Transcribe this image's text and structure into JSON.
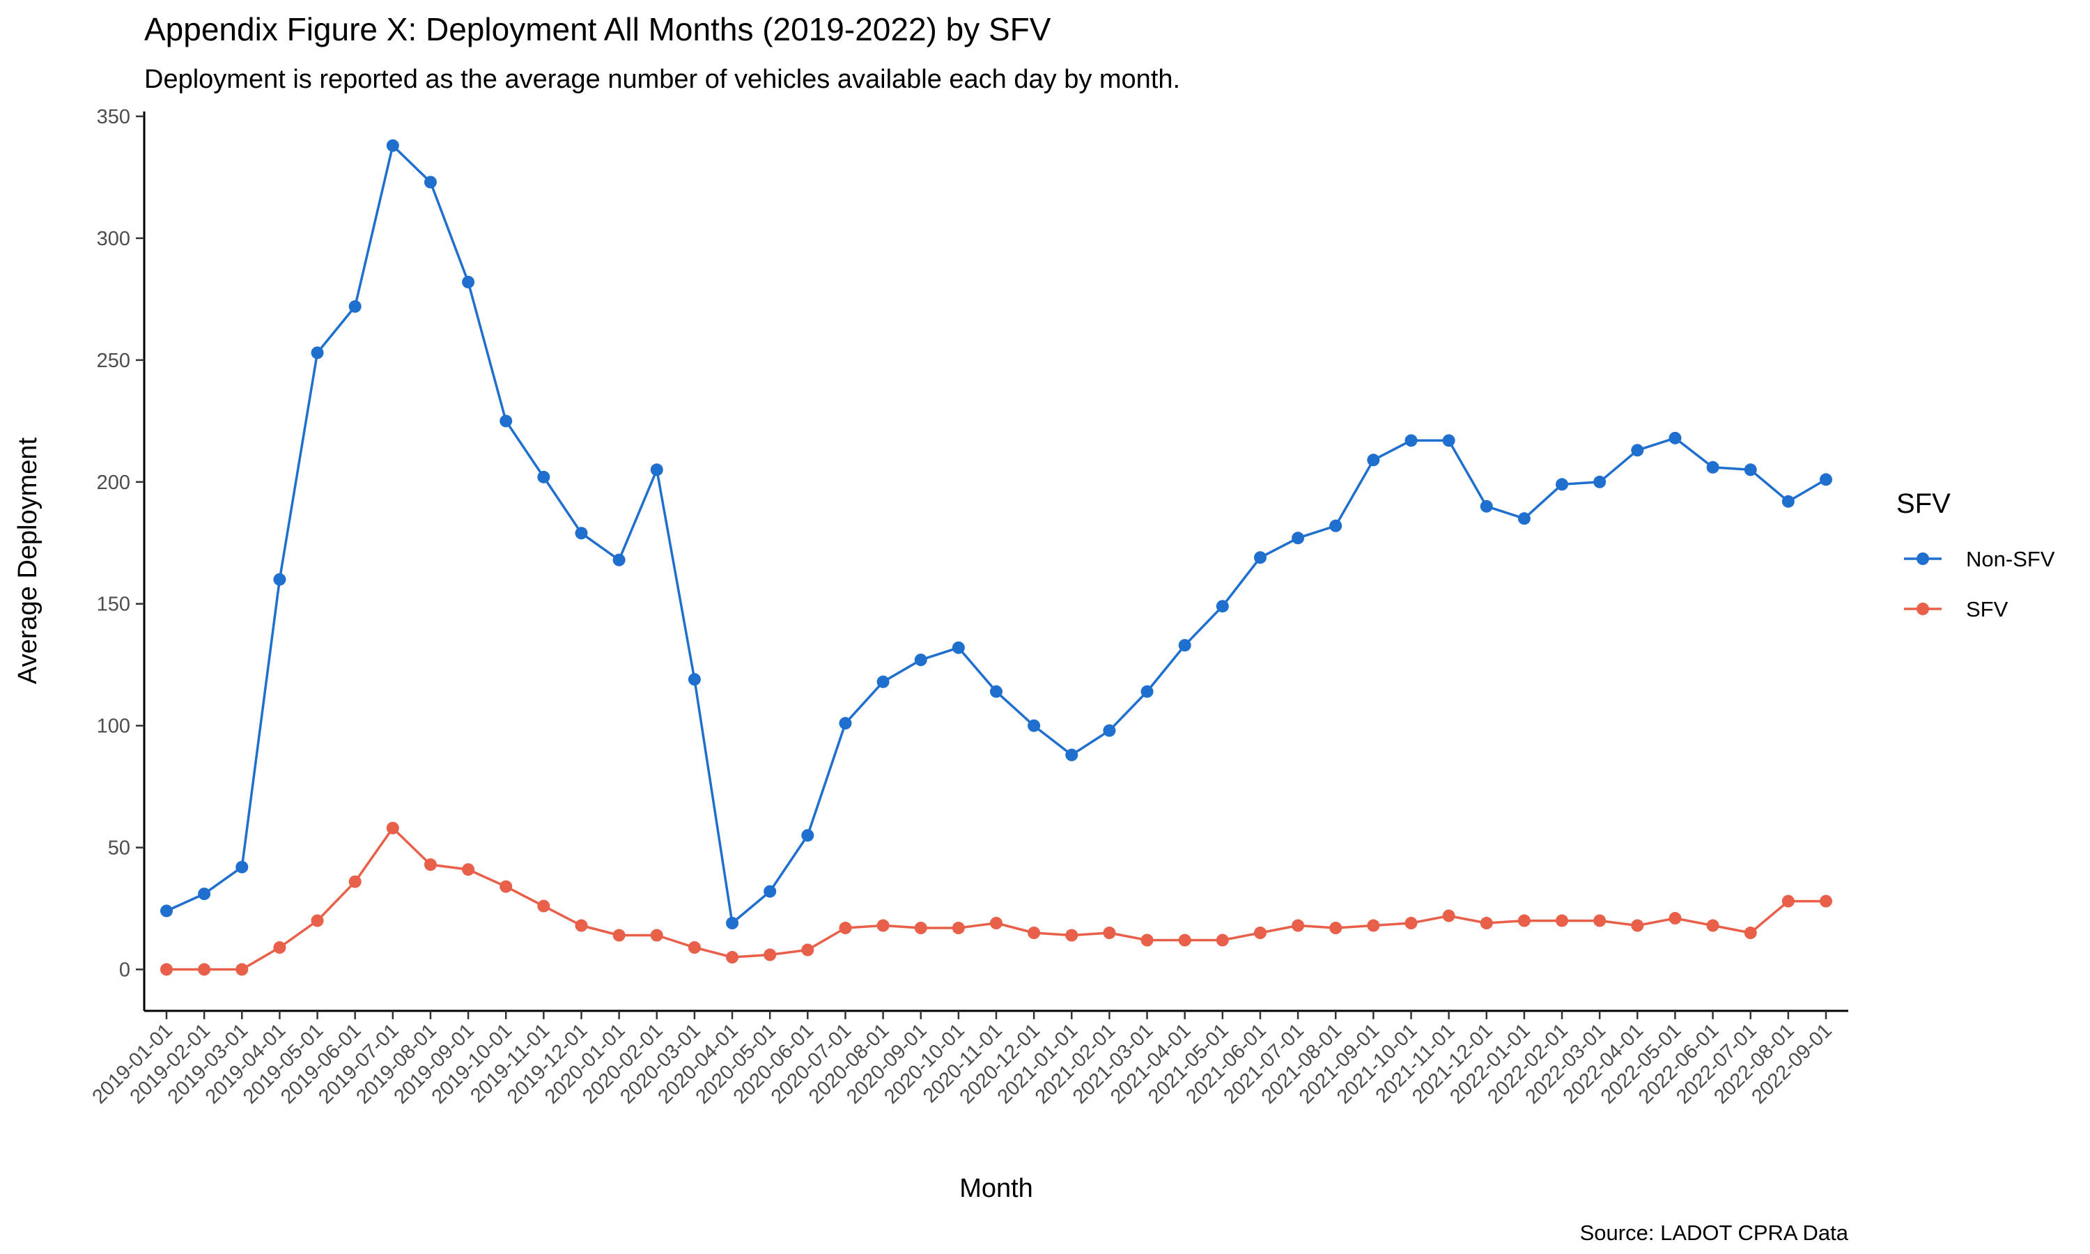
{
  "chart_data": {
    "type": "line",
    "title": "Appendix Figure X: Deployment All Months (2019-2022) by SFV",
    "subtitle": "Deployment is reported as the average number of vehicles available each day by month.",
    "xlabel": "Month",
    "ylabel": "Average Deployment",
    "caption": "Source: LADOT CPRA Data",
    "ylim": [
      -17,
      352
    ],
    "yticks": [
      0,
      50,
      100,
      150,
      200,
      250,
      300,
      350
    ],
    "grid": false,
    "legend_title": "SFV",
    "legend_position": "right",
    "x": [
      "2019-01-01",
      "2019-02-01",
      "2019-03-01",
      "2019-04-01",
      "2019-05-01",
      "2019-06-01",
      "2019-07-01",
      "2019-08-01",
      "2019-09-01",
      "2019-10-01",
      "2019-11-01",
      "2019-12-01",
      "2020-01-01",
      "2020-02-01",
      "2020-03-01",
      "2020-04-01",
      "2020-05-01",
      "2020-06-01",
      "2020-07-01",
      "2020-08-01",
      "2020-09-01",
      "2020-10-01",
      "2020-11-01",
      "2020-12-01",
      "2021-01-01",
      "2021-02-01",
      "2021-03-01",
      "2021-04-01",
      "2021-05-01",
      "2021-06-01",
      "2021-07-01",
      "2021-08-01",
      "2021-09-01",
      "2021-10-01",
      "2021-11-01",
      "2021-12-01",
      "2022-01-01",
      "2022-02-01",
      "2022-03-01",
      "2022-04-01",
      "2022-05-01",
      "2022-06-01",
      "2022-07-01",
      "2022-08-01",
      "2022-09-01"
    ],
    "series": [
      {
        "name": "Non-SFV",
        "color": "#1f6fcf",
        "values": [
          24,
          31,
          42,
          160,
          253,
          272,
          338,
          323,
          282,
          225,
          202,
          179,
          168,
          205,
          119,
          19,
          32,
          55,
          101,
          118,
          127,
          132,
          114,
          100,
          88,
          98,
          114,
          133,
          149,
          169,
          177,
          182,
          209,
          217,
          217,
          190,
          185,
          199,
          200,
          213,
          218,
          206,
          205,
          192,
          201
        ]
      },
      {
        "name": "SFV",
        "color": "#e8604a",
        "values": [
          0,
          0,
          0,
          9,
          20,
          36,
          58,
          43,
          41,
          34,
          26,
          18,
          14,
          14,
          9,
          5,
          6,
          8,
          17,
          18,
          17,
          17,
          19,
          15,
          14,
          15,
          12,
          12,
          12,
          15,
          18,
          17,
          18,
          19,
          22,
          19,
          20,
          20,
          20,
          18,
          21,
          18,
          15,
          28,
          28
        ]
      }
    ]
  }
}
